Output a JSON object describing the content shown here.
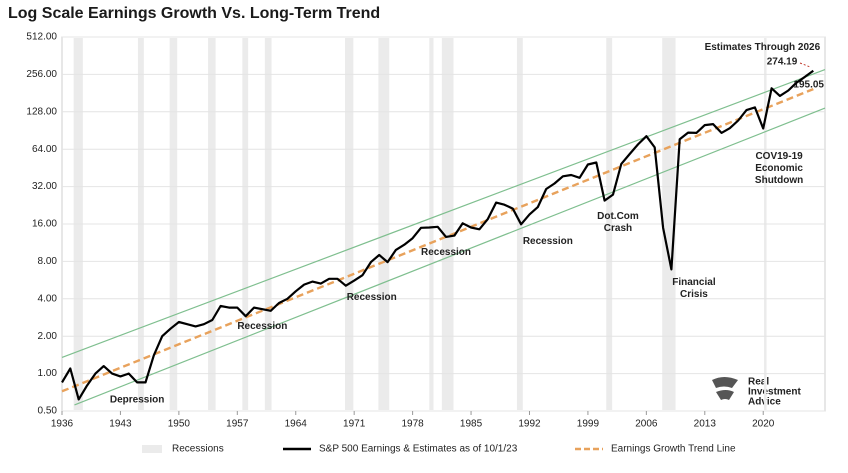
{
  "chart_data": {
    "type": "line",
    "title": "Log Scale Earnings Growth Vs. Long-Term Trend",
    "log_scale": true,
    "grid": true,
    "xlim": [
      1936,
      2027.4
    ],
    "xticks": [
      1936,
      1943,
      1950,
      1957,
      1964,
      1971,
      1978,
      1985,
      1992,
      1999,
      2006,
      2013,
      2020
    ],
    "ylim": [
      0.5,
      512
    ],
    "yticks": [
      {
        "value": 0.5,
        "label": "0.50"
      },
      {
        "value": 1,
        "label": "1.00"
      },
      {
        "value": 2,
        "label": "2.00"
      },
      {
        "value": 4,
        "label": "4.00"
      },
      {
        "value": 8,
        "label": "8.00"
      },
      {
        "value": 16,
        "label": "16.00"
      },
      {
        "value": 32,
        "label": "32.00"
      },
      {
        "value": 64,
        "label": "64.00"
      },
      {
        "value": 128,
        "label": "128.00"
      },
      {
        "value": 256,
        "label": "256.00"
      },
      {
        "value": 512,
        "label": "512.00"
      }
    ],
    "recessions": {
      "name": "Recessions",
      "color": "#ebebeb",
      "periods": [
        [
          1937.4,
          1938.5
        ],
        [
          1945.1,
          1945.8
        ],
        [
          1948.9,
          1949.8
        ],
        [
          1953.5,
          1954.4
        ],
        [
          1957.6,
          1958.3
        ],
        [
          1960.3,
          1961.1
        ],
        [
          1969.9,
          1970.9
        ],
        [
          1973.9,
          1975.2
        ],
        [
          1980.0,
          1980.5
        ],
        [
          1981.5,
          1982.9
        ],
        [
          1990.5,
          1991.2
        ],
        [
          2001.2,
          2001.9
        ],
        [
          2007.9,
          2009.5
        ],
        [
          2020.1,
          2020.4
        ]
      ]
    },
    "series": [
      {
        "name": "S&P 500 Earnings & Estimates as of 10/1/23",
        "color": "#000000",
        "style": "solid",
        "end_label": "274.19",
        "end_label_color": "#c0392b",
        "x": [
          1936,
          1937,
          1938,
          1939,
          1940,
          1941,
          1942,
          1943,
          1944,
          1945,
          1946,
          1947,
          1948,
          1949,
          1950,
          1951,
          1952,
          1953,
          1954,
          1955,
          1956,
          1957,
          1958,
          1959,
          1960,
          1961,
          1962,
          1963,
          1964,
          1965,
          1966,
          1967,
          1968,
          1969,
          1970,
          1971,
          1972,
          1973,
          1974,
          1975,
          1976,
          1977,
          1978,
          1979,
          1980,
          1981,
          1982,
          1983,
          1984,
          1985,
          1986,
          1987,
          1988,
          1989,
          1990,
          1991,
          1992,
          1993,
          1994,
          1995,
          1996,
          1997,
          1998,
          1999,
          2000,
          2001,
          2002,
          2003,
          2004,
          2005,
          2006,
          2007,
          2008,
          2009,
          2010,
          2011,
          2012,
          2013,
          2014,
          2015,
          2016,
          2017,
          2018,
          2019,
          2020,
          2021,
          2022,
          2023,
          2024,
          2025,
          2026
        ],
        "values": [
          0.85,
          1.1,
          0.62,
          0.8,
          1.0,
          1.15,
          1.0,
          0.95,
          1.0,
          0.85,
          0.85,
          1.4,
          2.0,
          2.3,
          2.6,
          2.5,
          2.4,
          2.5,
          2.7,
          3.5,
          3.4,
          3.4,
          2.9,
          3.4,
          3.3,
          3.2,
          3.7,
          4.0,
          4.6,
          5.2,
          5.5,
          5.3,
          5.8,
          5.8,
          5.1,
          5.6,
          6.2,
          7.9,
          9.0,
          7.9,
          9.9,
          10.9,
          12.3,
          14.9,
          15.0,
          15.2,
          12.6,
          12.9,
          16.2,
          15.0,
          14.5,
          17.5,
          23.8,
          22.9,
          21.3,
          15.9,
          19.1,
          21.9,
          30.6,
          33.9,
          38.7,
          39.7,
          37.7,
          48.2,
          50.0,
          24.7,
          27.6,
          48.7,
          58.6,
          69.9,
          81.5,
          66.2,
          14.9,
          6.9,
          77,
          87,
          86.5,
          100,
          102,
          86.5,
          94.5,
          109,
          132,
          139,
          94,
          198,
          172,
          190,
          220,
          245,
          274.19
        ]
      },
      {
        "name": "Earnings Growth Trend Line",
        "color": "#e8a25c",
        "style": "dashed",
        "end_label": "195.05",
        "end_label_color": "#333333",
        "x": [
          1936,
          2026
        ],
        "values": [
          0.72,
          195.05
        ]
      }
    ],
    "channel_lines": [
      {
        "color": "#7fbf8f",
        "x": [
          1936,
          2027.4
        ],
        "values": [
          1.35,
          280
        ]
      },
      {
        "color": "#7fbf8f",
        "x": [
          1937.5,
          2027.4
        ],
        "values": [
          0.56,
          137
        ]
      }
    ],
    "annotations": [
      {
        "text": [
          "Estimates Through 2026"
        ],
        "x": 2019.9,
        "y": 425
      },
      {
        "text": [
          "Depression"
        ],
        "x": 1945,
        "y": 0.62
      },
      {
        "text": [
          "Recession"
        ],
        "x": 1960,
        "y": 2.41
      },
      {
        "text": [
          "Recession"
        ],
        "x": 1973.1,
        "y": 4.13
      },
      {
        "text": [
          "Recession"
        ],
        "x": 1982,
        "y": 9.5
      },
      {
        "text": [
          "Recession"
        ],
        "x": 1994.2,
        "y": 11.7
      },
      {
        "text": [
          "Dot.Com",
          "Crash"
        ],
        "x": 2002.6,
        "y": 16.6
      },
      {
        "text": [
          "Financial",
          "Crisis"
        ],
        "x": 2011.7,
        "y": 4.9
      },
      {
        "text": [
          "COV19-19",
          "Economic",
          "Shutdown"
        ],
        "x": 2021.9,
        "y": 45
      }
    ],
    "watermark": [
      "Real",
      "Investment",
      "Advice"
    ]
  }
}
